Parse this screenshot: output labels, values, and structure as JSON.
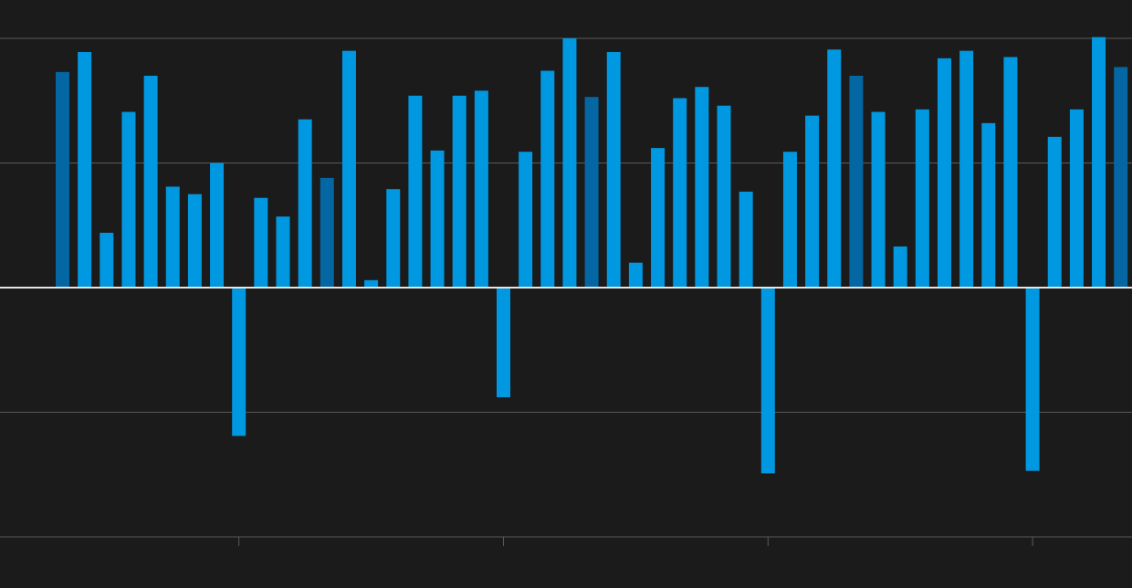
{
  "chart_data": {
    "type": "bar",
    "title": "",
    "xlabel": "",
    "ylabel": "",
    "ylim": [
      -2,
      2
    ],
    "gridlines_y": [
      -2,
      -1,
      0,
      1,
      2
    ],
    "grid": true,
    "legend": "none",
    "x_ticks_after_index": [
      8,
      20,
      32,
      44
    ],
    "colors": {
      "background": "#1b1b1b",
      "bar": "#0098e0",
      "bar_highlight": "#0466a3",
      "gridline": "#5a5a5a",
      "zero_line": "#e6e6e6"
    },
    "values": [
      1.73,
      1.89,
      0.44,
      1.41,
      1.7,
      0.81,
      0.75,
      1.0,
      -1.19,
      0.72,
      0.57,
      1.35,
      0.88,
      1.9,
      0.06,
      0.79,
      1.54,
      1.1,
      1.54,
      1.58,
      -0.88,
      1.09,
      1.74,
      2.0,
      1.53,
      1.89,
      0.2,
      1.12,
      1.52,
      1.61,
      1.46,
      0.77,
      -1.49,
      1.09,
      1.38,
      1.91,
      1.7,
      1.41,
      0.33,
      1.43,
      1.84,
      1.9,
      1.32,
      1.85,
      -1.47,
      1.21,
      1.43,
      2.01,
      1.77
    ],
    "highlight": [
      true,
      false,
      false,
      false,
      false,
      false,
      false,
      false,
      false,
      false,
      false,
      false,
      true,
      false,
      false,
      false,
      false,
      false,
      false,
      false,
      false,
      false,
      false,
      false,
      true,
      false,
      false,
      false,
      false,
      false,
      false,
      false,
      false,
      false,
      false,
      false,
      true,
      false,
      false,
      false,
      false,
      false,
      false,
      false,
      false,
      false,
      false,
      false,
      true
    ]
  }
}
